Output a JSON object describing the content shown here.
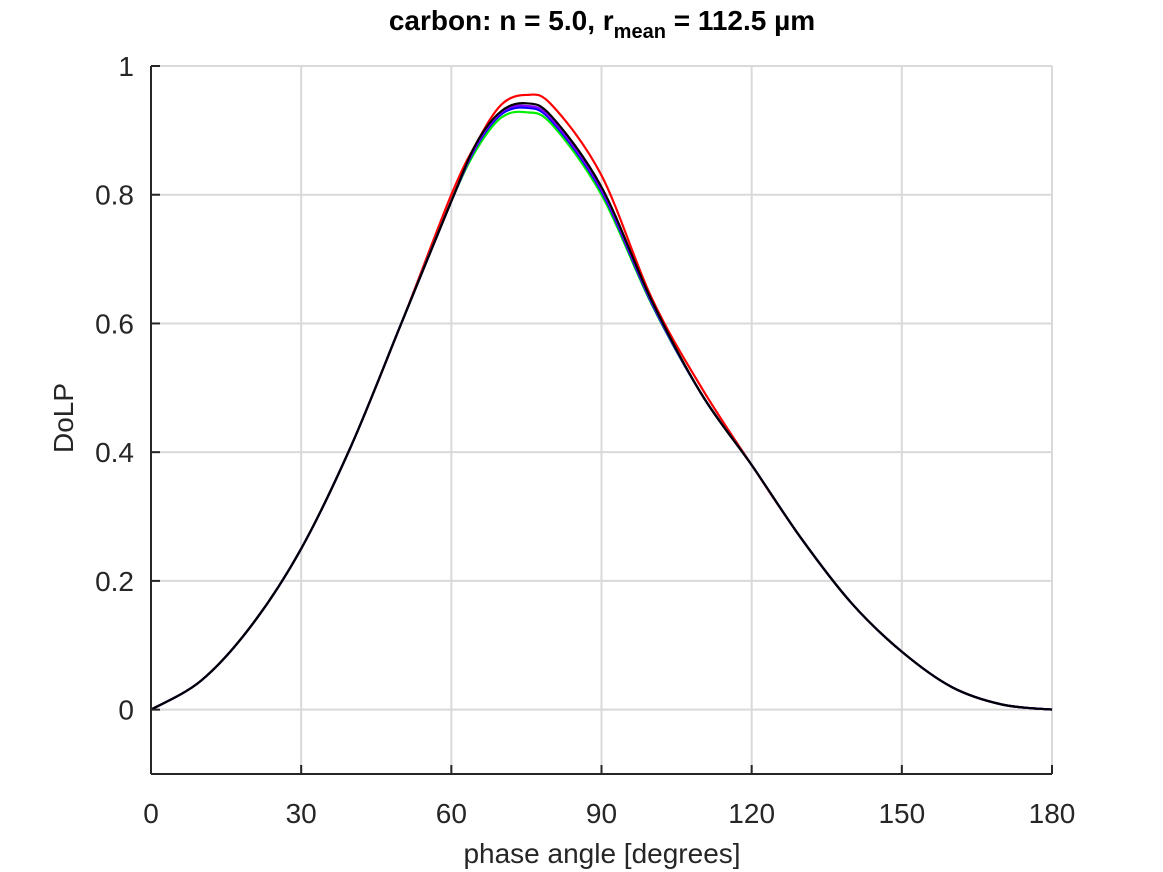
{
  "chart_data": {
    "type": "line",
    "title": "carbon: n = 5.0, r",
    "title_subscript": "mean",
    "title_suffix": " = 112.5 µm",
    "xlabel": "phase angle [degrees]",
    "ylabel": "DoLP",
    "xlim": [
      0,
      180
    ],
    "ylim": [
      -0.1,
      1
    ],
    "xticks": [
      0,
      30,
      60,
      90,
      120,
      150,
      180
    ],
    "yticks": [
      0,
      0.2,
      0.4,
      0.6,
      0.8,
      1
    ],
    "ytick_labels": [
      "0",
      "0.2",
      "0.4",
      "0.6",
      "0.8",
      "1"
    ],
    "grid": true,
    "x": [
      0,
      10,
      20,
      30,
      40,
      50,
      60,
      65,
      70,
      75,
      80,
      90,
      100,
      110,
      120,
      130,
      140,
      150,
      160,
      170,
      180
    ],
    "series": [
      {
        "name": "red",
        "color": "#ff0000",
        "values": [
          0,
          0.045,
          0.13,
          0.25,
          0.41,
          0.6,
          0.8,
          0.88,
          0.94,
          0.955,
          0.94,
          0.83,
          0.64,
          0.5,
          0.38,
          0.265,
          0.165,
          0.09,
          0.035,
          0.008,
          0
        ]
      },
      {
        "name": "green",
        "color": "#00ee00",
        "values": [
          0,
          0.045,
          0.13,
          0.25,
          0.41,
          0.6,
          0.79,
          0.87,
          0.92,
          0.928,
          0.91,
          0.8,
          0.63,
          0.49,
          0.38,
          0.265,
          0.165,
          0.09,
          0.035,
          0.008,
          0
        ]
      },
      {
        "name": "blue",
        "color": "#0000ff",
        "values": [
          0,
          0.045,
          0.13,
          0.25,
          0.41,
          0.6,
          0.79,
          0.875,
          0.925,
          0.935,
          0.915,
          0.805,
          0.632,
          0.49,
          0.38,
          0.265,
          0.165,
          0.09,
          0.035,
          0.008,
          0
        ]
      },
      {
        "name": "purple",
        "color": "#7f00ff",
        "values": [
          0,
          0.045,
          0.13,
          0.25,
          0.41,
          0.6,
          0.79,
          0.877,
          0.928,
          0.938,
          0.918,
          0.808,
          0.634,
          0.49,
          0.38,
          0.265,
          0.165,
          0.09,
          0.035,
          0.008,
          0
        ]
      },
      {
        "name": "black",
        "color": "#000000",
        "values": [
          0,
          0.045,
          0.13,
          0.25,
          0.41,
          0.6,
          0.79,
          0.88,
          0.93,
          0.942,
          0.922,
          0.812,
          0.636,
          0.49,
          0.38,
          0.265,
          0.165,
          0.09,
          0.035,
          0.008,
          0
        ]
      }
    ]
  }
}
